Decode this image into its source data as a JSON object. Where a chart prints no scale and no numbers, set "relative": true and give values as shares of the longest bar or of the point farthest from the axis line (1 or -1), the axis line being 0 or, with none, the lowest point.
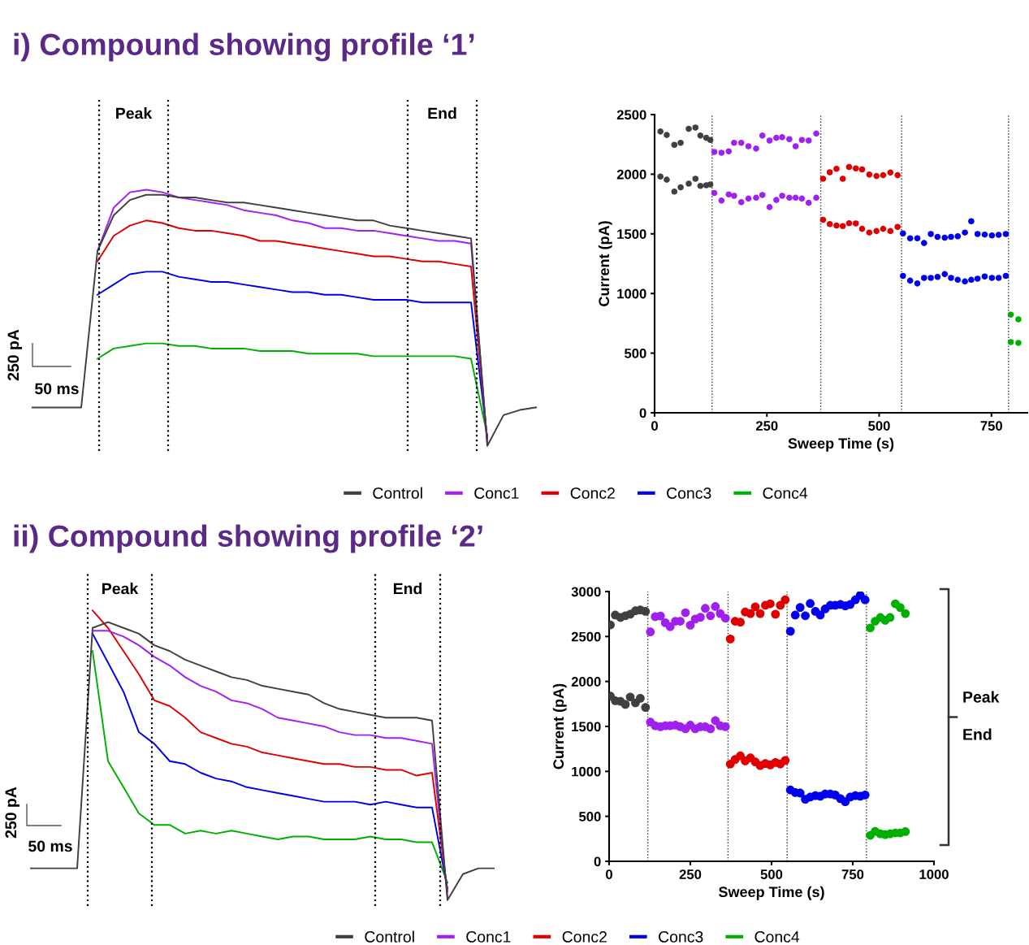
{
  "chart_data": [
    {
      "type": "line",
      "title": "i) Compound showing profile ‘1’",
      "relative": true,
      "tick_labels": false,
      "legend": "bottom",
      "line_style": "solid",
      "categories": [
        null,
        null,
        null,
        null,
        null,
        null,
        null,
        null,
        null,
        null,
        null,
        null,
        null,
        null,
        null,
        null,
        null,
        null,
        null,
        null,
        null,
        null,
        null,
        null,
        null,
        null,
        null,
        null,
        null,
        null,
        null,
        null
      ],
      "series": [
        {
          "name": "Control",
          "color": "#404040",
          "values": [
            0.15,
            0.15,
            0.15,
            0.15,
            0.76,
            0.9,
            0.96,
            0.98,
            0.98,
            0.97,
            0.97,
            0.96,
            0.95,
            0.95,
            0.94,
            0.93,
            0.92,
            0.91,
            0.9,
            0.89,
            0.88,
            0.88,
            0.86,
            0.85,
            0.84,
            0.83,
            0.82,
            0.81,
            0,
            0.12,
            0.14,
            0.15
          ]
        },
        {
          "name": "Conc1",
          "color": "#a020f0",
          "values": [
            null,
            null,
            null,
            null,
            0.76,
            0.93,
            0.99,
            1.0,
            0.99,
            0.97,
            0.96,
            0.95,
            0.94,
            0.92,
            0.91,
            0.9,
            0.88,
            0.87,
            0.85,
            0.85,
            0.84,
            0.84,
            0.83,
            0.82,
            0.81,
            0.8,
            0.8,
            0.79,
            0.01,
            null,
            null,
            null
          ]
        },
        {
          "name": "Conc2",
          "color": "#e00000",
          "values": [
            null,
            null,
            null,
            null,
            0.72,
            0.82,
            0.86,
            0.88,
            0.87,
            0.85,
            0.84,
            0.84,
            0.83,
            0.82,
            0.8,
            0.8,
            0.79,
            0.78,
            0.77,
            0.76,
            0.75,
            0.74,
            0.74,
            0.73,
            0.72,
            0.72,
            0.71,
            0.7,
            0.02,
            null,
            null,
            null
          ]
        },
        {
          "name": "Conc3",
          "color": "#0000ee",
          "values": [
            null,
            null,
            null,
            null,
            0.59,
            0.63,
            0.67,
            0.68,
            0.68,
            0.66,
            0.65,
            0.64,
            0.64,
            0.63,
            0.62,
            0.61,
            0.6,
            0.6,
            0.59,
            0.59,
            0.58,
            0.57,
            0.57,
            0.57,
            0.56,
            0.56,
            0.56,
            0.56,
            0.03,
            null,
            null,
            null
          ]
        },
        {
          "name": "Conc4",
          "color": "#00b000",
          "values": [
            null,
            null,
            null,
            null,
            0.34,
            0.38,
            0.39,
            0.4,
            0.4,
            0.39,
            0.39,
            0.38,
            0.38,
            0.38,
            0.37,
            0.37,
            0.37,
            0.36,
            0.36,
            0.36,
            0.36,
            0.35,
            0.35,
            0.35,
            0.35,
            0.35,
            0.35,
            0.34,
            0.04,
            null,
            null,
            null
          ]
        }
      ],
      "annotations": [
        "Peak",
        "End",
        "250 pA",
        "50 ms"
      ]
    },
    {
      "type": "scatter",
      "xlabel": "Sweep Time (s)",
      "ylabel": "Current (pA)",
      "marker": "circle",
      "xlim": [
        0,
        830
      ],
      "xticks": [
        0,
        250,
        500,
        750
      ],
      "ylim": [
        0,
        2500
      ],
      "yticks": [
        0,
        500,
        1000,
        1500,
        2000,
        2500
      ],
      "series": [
        {
          "color": "#404040",
          "x": [
            13,
            27,
            44,
            58,
            76,
            91,
            102,
            115,
            124,
            13,
            27,
            44,
            58,
            76,
            91,
            102,
            115,
            124
          ],
          "values": [
            2358,
            2329,
            2246,
            2263,
            2381,
            2391,
            2324,
            2305,
            2287,
            1981,
            1954,
            1855,
            1890,
            1921,
            1962,
            1902,
            1907,
            1914
          ]
        },
        {
          "color": "#a020f0",
          "x": [
            133,
            149,
            165,
            177,
            193,
            209,
            226,
            240,
            256,
            271,
            284,
            300,
            314,
            328,
            343,
            360,
            133,
            149,
            165,
            177,
            193,
            209,
            226,
            240,
            256,
            271,
            284,
            300,
            314,
            328,
            343,
            360
          ],
          "values": [
            2187,
            2180,
            2192,
            2263,
            2263,
            2234,
            2215,
            2324,
            2282,
            2305,
            2310,
            2294,
            2234,
            2287,
            2282,
            2341,
            1843,
            1779,
            1831,
            1819,
            1765,
            1796,
            1803,
            1826,
            1724,
            1784,
            1819,
            1803,
            1803,
            1796,
            1760,
            1803
          ]
        },
        {
          "color": "#e00000",
          "x": [
            375,
            390,
            405,
            419,
            433,
            448,
            462,
            478,
            494,
            509,
            525,
            541,
            375,
            390,
            405,
            419,
            433,
            448,
            462,
            478,
            494,
            509,
            525,
            541
          ],
          "values": [
            1962,
            2016,
            2045,
            1962,
            2061,
            2049,
            2040,
            1997,
            1985,
            1992,
            2014,
            1992,
            1618,
            1582,
            1570,
            1565,
            1589,
            1587,
            1542,
            1511,
            1523,
            1542,
            1523,
            1558
          ]
        },
        {
          "color": "#0000ee",
          "x": [
            553,
            569,
            585,
            600,
            615,
            630,
            646,
            660,
            675,
            691,
            705,
            719,
            735,
            751,
            766,
            782,
            553,
            569,
            585,
            600,
            615,
            630,
            646,
            660,
            675,
            691,
            705,
            719,
            735,
            751,
            766,
            782
          ],
          "values": [
            1504,
            1463,
            1463,
            1423,
            1499,
            1475,
            1468,
            1475,
            1480,
            1511,
            1606,
            1499,
            1494,
            1487,
            1492,
            1499,
            1148,
            1108,
            1084,
            1131,
            1131,
            1139,
            1162,
            1131,
            1115,
            1101,
            1115,
            1124,
            1143,
            1131,
            1131,
            1148
          ]
        },
        {
          "color": "#00b000",
          "x": [
            793,
            810,
            793,
            810
          ],
          "values": [
            823,
            783,
            593,
            586
          ]
        }
      ],
      "ref_lines": [
        {
          "axis": "x",
          "value": 128,
          "line_style": "dotted"
        },
        {
          "axis": "x",
          "value": 370,
          "line_style": "dotted"
        },
        {
          "axis": "x",
          "value": 550,
          "line_style": "dotted"
        },
        {
          "axis": "x",
          "value": 788,
          "line_style": "dotted"
        }
      ]
    },
    {
      "type": "line",
      "title": "ii) Compound showing profile ‘2’",
      "relative": true,
      "tick_labels": false,
      "legend": "bottom",
      "line_style": "solid",
      "categories": [
        null,
        null,
        null,
        null,
        null,
        null,
        null,
        null,
        null,
        null,
        null,
        null,
        null,
        null,
        null,
        null,
        null,
        null,
        null,
        null,
        null,
        null,
        null,
        null,
        null,
        null,
        null,
        null,
        null,
        null,
        null
      ],
      "series": [
        {
          "name": "Control",
          "color": "#404040",
          "values": [
            0.11,
            0.11,
            0.11,
            0.11,
            0.94,
            0.96,
            0.94,
            0.92,
            0.88,
            0.86,
            0.83,
            0.81,
            0.79,
            0.77,
            0.76,
            0.74,
            0.73,
            0.72,
            0.71,
            0.68,
            0.66,
            0.65,
            0.64,
            0.63,
            0.63,
            0.63,
            0.62,
            0,
            0.09,
            0.11,
            0.11
          ]
        },
        {
          "name": "Conc1",
          "color": "#a020f0",
          "values": [
            null,
            null,
            null,
            null,
            0.93,
            0.93,
            0.91,
            0.88,
            0.84,
            0.81,
            0.77,
            0.74,
            0.72,
            0.69,
            0.68,
            0.66,
            0.63,
            0.62,
            0.61,
            0.6,
            0.58,
            0.57,
            0.57,
            0.56,
            0.56,
            0.55,
            0.54,
            0.01,
            null,
            null,
            null
          ]
        },
        {
          "name": "Conc2",
          "color": "#e00000",
          "values": [
            null,
            null,
            null,
            null,
            1.0,
            0.94,
            0.86,
            0.78,
            0.69,
            0.67,
            0.63,
            0.58,
            0.56,
            0.54,
            0.53,
            0.51,
            0.5,
            0.49,
            0.48,
            0.47,
            0.47,
            0.46,
            0.46,
            0.45,
            0.45,
            0.43,
            0.44,
            0.03,
            null,
            null,
            null
          ]
        },
        {
          "name": "Conc3",
          "color": "#0000ee",
          "values": [
            null,
            null,
            null,
            null,
            0.92,
            0.82,
            0.72,
            0.58,
            0.54,
            0.48,
            0.47,
            0.44,
            0.42,
            0.41,
            0.39,
            0.38,
            0.37,
            0.36,
            0.35,
            0.34,
            0.34,
            0.34,
            0.33,
            0.34,
            0.33,
            0.32,
            0.32,
            0.04,
            null,
            null,
            null
          ]
        },
        {
          "name": "Conc4",
          "color": "#00b000",
          "values": [
            null,
            null,
            null,
            null,
            0.86,
            0.48,
            0.39,
            0.3,
            0.26,
            0.26,
            0.23,
            0.24,
            0.23,
            0.24,
            0.23,
            0.22,
            0.21,
            0.22,
            0.22,
            0.21,
            0.21,
            0.21,
            0.22,
            0.21,
            0.21,
            0.2,
            0.2,
            0.06,
            null,
            null,
            null
          ]
        }
      ],
      "annotations": [
        "Peak",
        "End",
        "250 pA",
        "50 ms"
      ]
    },
    {
      "type": "scatter",
      "xlabel": "Sweep Time (s)",
      "ylabel": "Current (pA)",
      "marker": "circle",
      "xlim": [
        0,
        1000
      ],
      "xticks": [
        0,
        250,
        500,
        750,
        1000
      ],
      "ylim": [
        0,
        3000
      ],
      "yticks": [
        0,
        500,
        1000,
        1500,
        2000,
        2500,
        3000
      ],
      "series": [
        {
          "color": "#404040",
          "x": [
            4,
            19,
            35,
            50,
            65,
            81,
            96,
            112,
            4,
            19,
            35,
            50,
            65,
            81,
            96,
            112
          ],
          "values": [
            2629,
            2738,
            2711,
            2731,
            2748,
            2786,
            2796,
            2779,
            1837,
            1786,
            1779,
            1745,
            1827,
            1762,
            1813,
            1711
          ]
        },
        {
          "color": "#a020f0",
          "x": [
            127,
            142,
            158,
            173,
            188,
            204,
            219,
            235,
            250,
            265,
            281,
            296,
            312,
            327,
            342,
            358,
            127,
            142,
            158,
            173,
            188,
            204,
            219,
            235,
            250,
            265,
            281,
            296,
            312,
            327,
            342,
            358
          ],
          "values": [
            2551,
            2721,
            2728,
            2653,
            2609,
            2670,
            2670,
            2765,
            2626,
            2694,
            2714,
            2813,
            2731,
            2833,
            2755,
            2704,
            1548,
            1507,
            1497,
            1507,
            1507,
            1514,
            1497,
            1473,
            1514,
            1473,
            1497,
            1497,
            1473,
            1565,
            1507,
            1497
          ]
        },
        {
          "color": "#e00000",
          "x": [
            373,
            388,
            404,
            419,
            435,
            450,
            465,
            481,
            496,
            512,
            527,
            542,
            373,
            388,
            404,
            419,
            435,
            450,
            465,
            481,
            496,
            512,
            527,
            542
          ],
          "values": [
            2473,
            2670,
            2660,
            2772,
            2755,
            2830,
            2755,
            2847,
            2864,
            2748,
            2847,
            2908,
            1082,
            1133,
            1173,
            1116,
            1150,
            1105,
            1065,
            1088,
            1071,
            1099,
            1082,
            1122
          ]
        },
        {
          "color": "#0000ee",
          "x": [
            558,
            573,
            588,
            604,
            619,
            635,
            650,
            665,
            681,
            696,
            712,
            727,
            742,
            758,
            773,
            788,
            558,
            573,
            588,
            604,
            619,
            635,
            650,
            665,
            681,
            696,
            712,
            727,
            742,
            758,
            773,
            788
          ],
          "values": [
            2558,
            2738,
            2823,
            2731,
            2867,
            2779,
            2738,
            2806,
            2847,
            2847,
            2857,
            2840,
            2857,
            2908,
            2959,
            2908,
            793,
            765,
            759,
            690,
            714,
            731,
            724,
            748,
            748,
            738,
            697,
            663,
            714,
            731,
            724,
            738
          ]
        },
        {
          "color": "#00b000",
          "x": [
            804,
            819,
            835,
            850,
            865,
            881,
            896,
            912,
            804,
            819,
            835,
            850,
            865,
            881,
            896,
            912
          ],
          "values": [
            2595,
            2670,
            2711,
            2680,
            2711,
            2864,
            2823,
            2755,
            289,
            333,
            306,
            296,
            306,
            316,
            316,
            330
          ]
        }
      ],
      "ref_lines": [
        {
          "axis": "x",
          "value": 119,
          "line_style": "dotted"
        },
        {
          "axis": "x",
          "value": 366,
          "line_style": "dotted"
        },
        {
          "axis": "x",
          "value": 548,
          "line_style": "dotted"
        },
        {
          "axis": "x",
          "value": 792,
          "line_style": "dotted"
        }
      ],
      "annotations": [
        "Peak",
        "End"
      ]
    }
  ]
}
